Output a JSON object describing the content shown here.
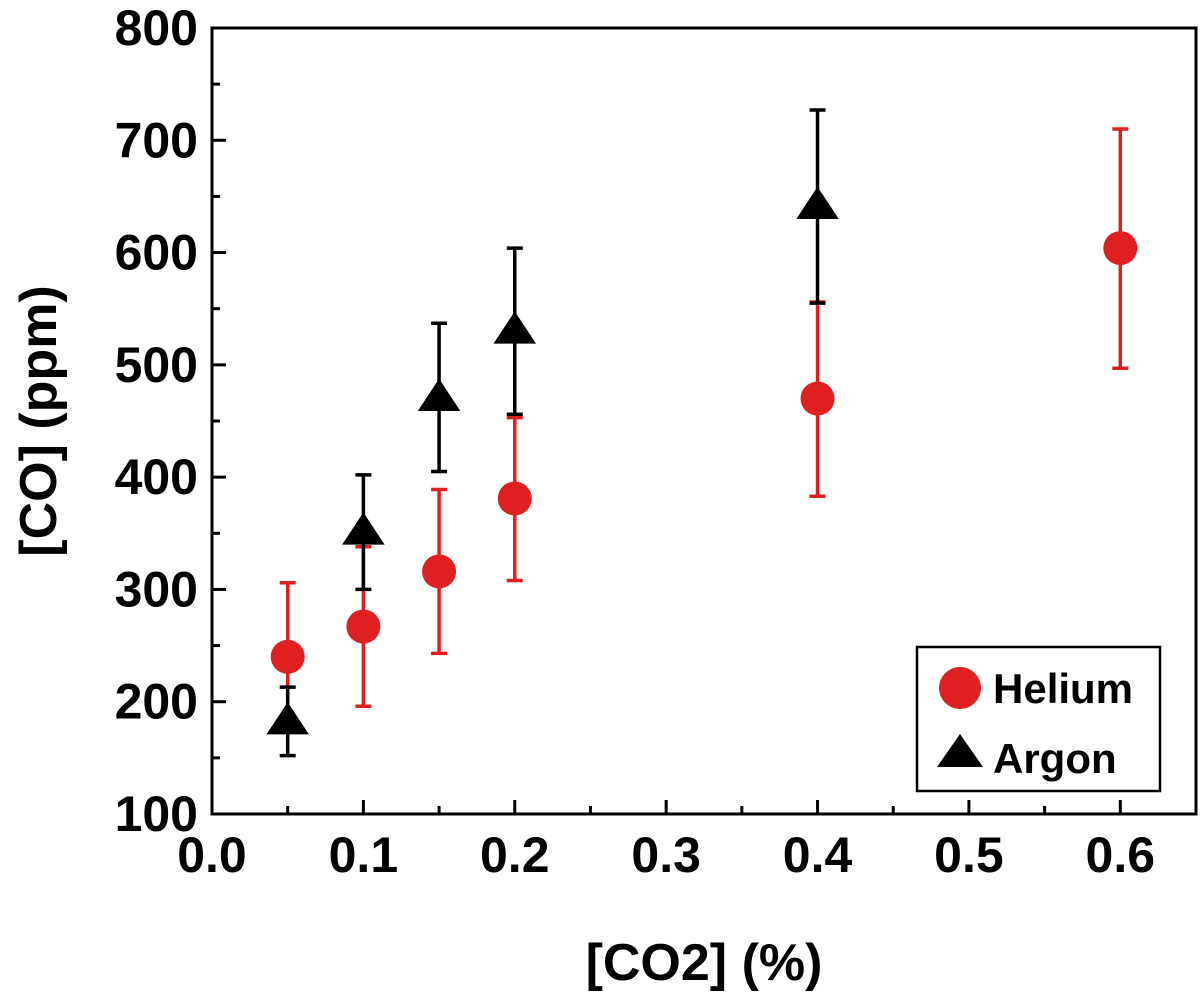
{
  "chart_data": {
    "type": "scatter",
    "title": "",
    "xlabel": "[CO2] (%)",
    "ylabel": "[CO] (ppm)",
    "xlim": [
      0.0,
      0.65
    ],
    "ylim": [
      100,
      800
    ],
    "xticks": [
      "0.0",
      "0.1",
      "0.2",
      "0.3",
      "0.4",
      "0.5",
      "0.6"
    ],
    "yticks": [
      "100",
      "200",
      "300",
      "400",
      "500",
      "600",
      "700",
      "800"
    ],
    "grid": false,
    "legend_position": "bottom-right",
    "series": [
      {
        "name": "Helium",
        "marker": "circle",
        "color": "#e02020",
        "points": [
          {
            "x": 0.05,
            "y": 240,
            "err_low": 175,
            "err_high": 306
          },
          {
            "x": 0.1,
            "y": 267,
            "err_low": 196,
            "err_high": 338
          },
          {
            "x": 0.15,
            "y": 316,
            "err_low": 243,
            "err_high": 389
          },
          {
            "x": 0.2,
            "y": 381,
            "err_low": 308,
            "err_high": 453
          },
          {
            "x": 0.4,
            "y": 470,
            "err_low": 383,
            "err_high": 556
          },
          {
            "x": 0.6,
            "y": 604,
            "err_low": 497,
            "err_high": 710
          }
        ]
      },
      {
        "name": "Argon",
        "marker": "triangle",
        "color": "#000000",
        "points": [
          {
            "x": 0.05,
            "y": 183,
            "err_low": 152,
            "err_high": 213
          },
          {
            "x": 0.1,
            "y": 352,
            "err_low": 300,
            "err_high": 402
          },
          {
            "x": 0.15,
            "y": 471,
            "err_low": 405,
            "err_high": 537
          },
          {
            "x": 0.2,
            "y": 531,
            "err_low": 456,
            "err_high": 604
          },
          {
            "x": 0.4,
            "y": 642,
            "err_low": 555,
            "err_high": 727
          }
        ]
      }
    ]
  }
}
